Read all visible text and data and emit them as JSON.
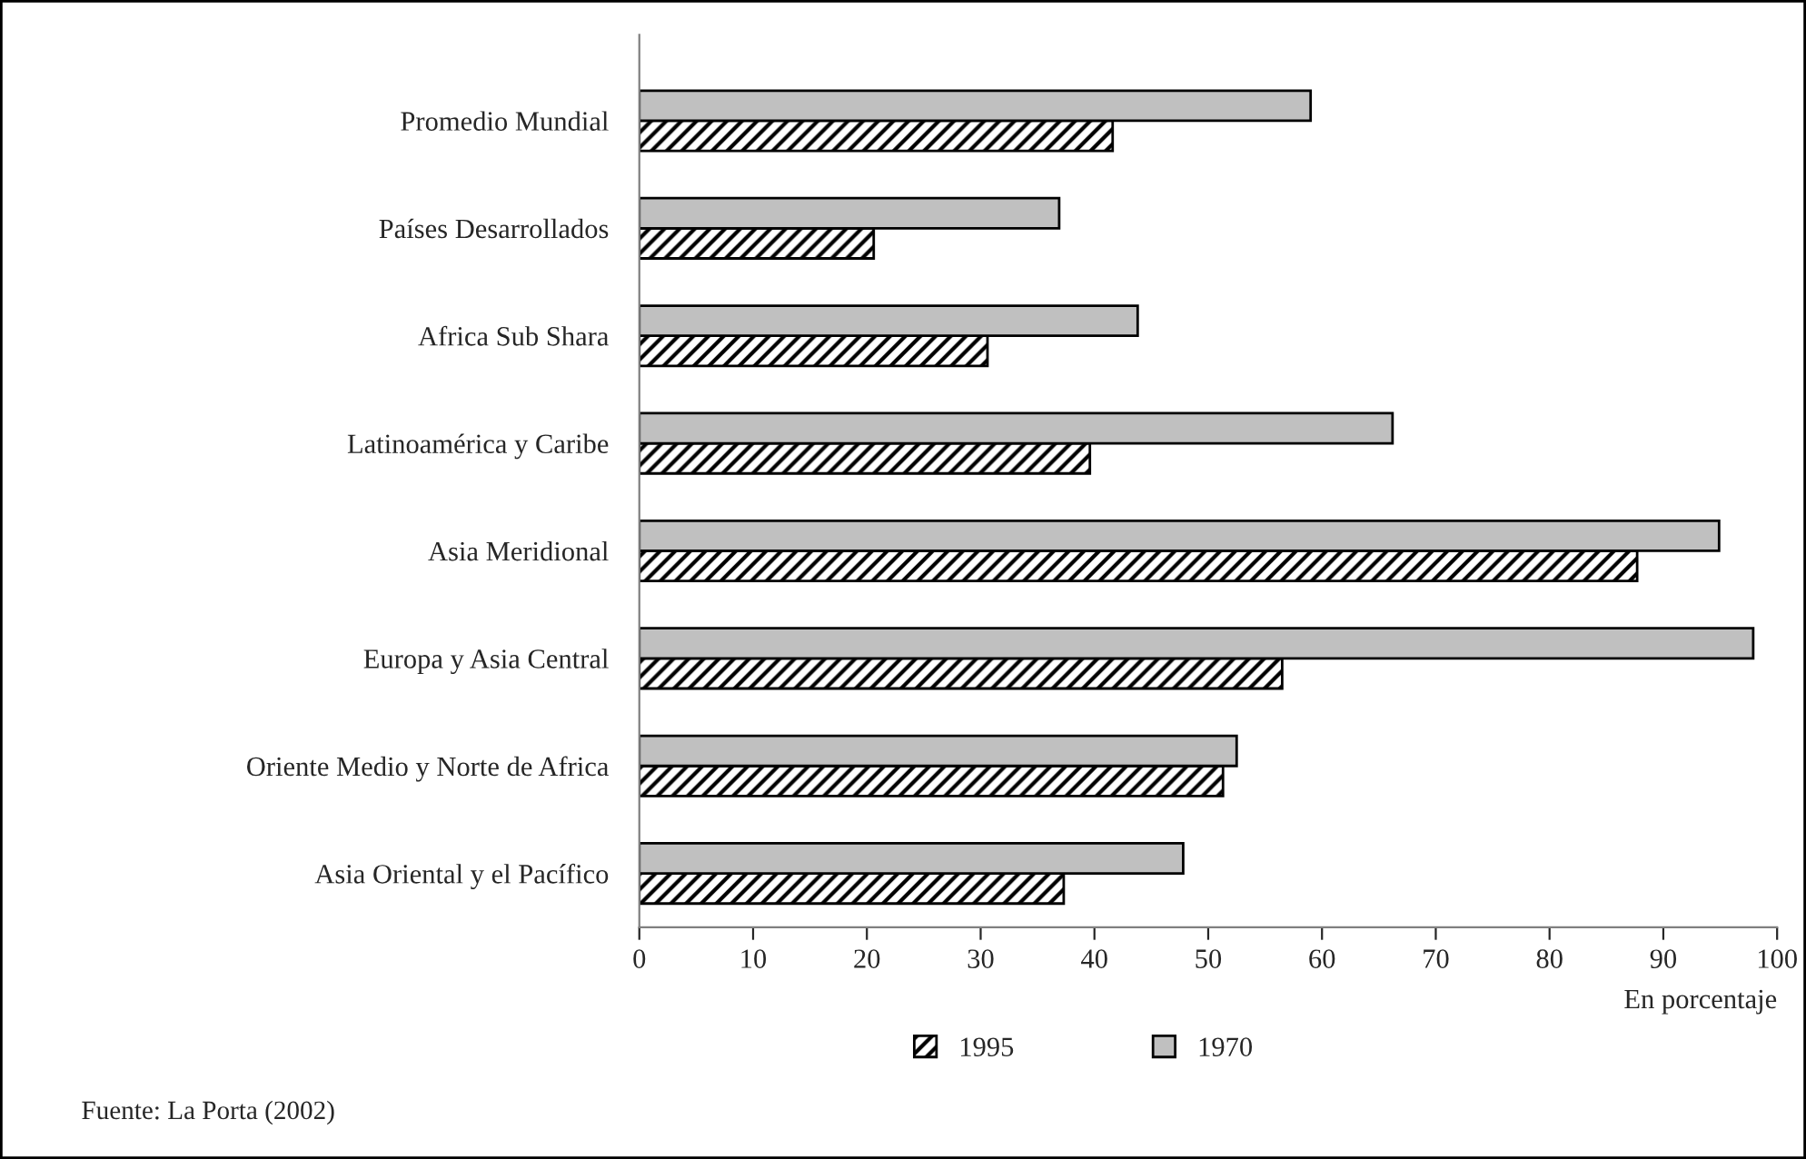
{
  "chart_data": {
    "type": "bar",
    "orientation": "horizontal",
    "categories": [
      "Promedio Mundial",
      "Países Desarrollados",
      "Africa Sub Shara",
      "Latinoamérica y Caribe",
      "Asia Meridional",
      "Europa y Asia Central",
      "Oriente Medio y Norte de Africa",
      "Asia Oriental y el Pacífico"
    ],
    "series": [
      {
        "name": "1995",
        "color": "#000000",
        "values": [
          41.6,
          20.6,
          30.6,
          39.6,
          87.7,
          56.5,
          51.3,
          37.3
        ]
      },
      {
        "name": "1970",
        "color": "#c0c0c0",
        "values": [
          59.0,
          36.9,
          43.8,
          66.2,
          94.9,
          97.9,
          52.5,
          47.8
        ]
      }
    ],
    "xlim": [
      0,
      100
    ],
    "xticks": [
      0,
      10,
      20,
      30,
      40,
      50,
      60,
      70,
      80,
      90,
      100
    ],
    "xlabel": "En porcentaje",
    "legend": "bottom",
    "grid": false,
    "annotations": [
      "Fuente: La Porta (2002)"
    ]
  }
}
